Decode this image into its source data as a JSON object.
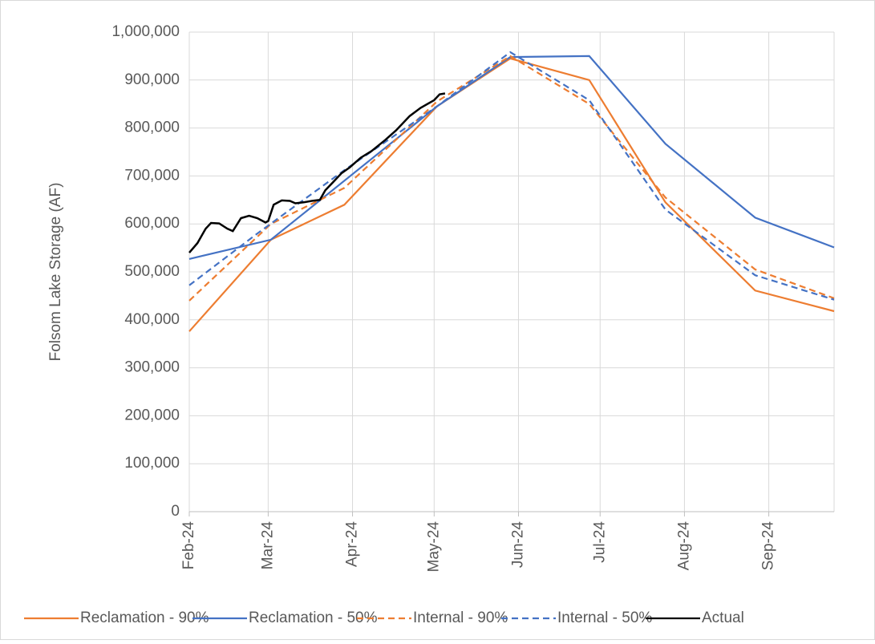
{
  "chart_data": {
    "type": "line",
    "y_label": "Folsom Lake Storage (AF)",
    "xlim": [
      0,
      237
    ],
    "xticks": [
      {
        "value": 0,
        "label": "Feb-24"
      },
      {
        "value": 29,
        "label": "Mar-24"
      },
      {
        "value": 60,
        "label": "Apr-24"
      },
      {
        "value": 90,
        "label": "May-24"
      },
      {
        "value": 121,
        "label": "Jun-24"
      },
      {
        "value": 151,
        "label": "Jul-24"
      },
      {
        "value": 182,
        "label": "Aug-24"
      },
      {
        "value": 213,
        "label": "Sep-24"
      }
    ],
    "ylim": [
      0,
      1000000
    ],
    "yticks": [
      {
        "value": 0,
        "label": "0"
      },
      {
        "value": 100000,
        "label": "100,000"
      },
      {
        "value": 200000,
        "label": "200,000"
      },
      {
        "value": 300000,
        "label": "300,000"
      },
      {
        "value": 400000,
        "label": "400,000"
      },
      {
        "value": 500000,
        "label": "500,000"
      },
      {
        "value": 600000,
        "label": "600,000"
      },
      {
        "value": 700000,
        "label": "700,000"
      },
      {
        "value": 800000,
        "label": "800,000"
      },
      {
        "value": 900000,
        "label": "900,000"
      },
      {
        "value": 1000000,
        "label": "1,000,000"
      }
    ],
    "grid": true,
    "legend": "bottom",
    "series": [
      {
        "name": "Reclamation - 90%",
        "color": "#ed7d31",
        "dash": false,
        "x": [
          0,
          30,
          57,
          91,
          118,
          147,
          175,
          208,
          237
        ],
        "values": [
          376000,
          567000,
          640000,
          845000,
          945000,
          900000,
          645000,
          461000,
          418000
        ]
      },
      {
        "name": "Reclamation - 50%",
        "color": "#4472c4",
        "dash": false,
        "x": [
          0,
          30,
          91,
          118,
          147,
          175,
          208,
          237
        ],
        "values": [
          527000,
          567000,
          845000,
          948000,
          950000,
          767000,
          613000,
          551000
        ]
      },
      {
        "name": "Internal - 90%",
        "color": "#ed7d31",
        "dash": true,
        "x": [
          0,
          30,
          57,
          91,
          118,
          147,
          175,
          208,
          237
        ],
        "values": [
          440000,
          600000,
          675000,
          855000,
          950000,
          850000,
          655000,
          505000,
          445000
        ]
      },
      {
        "name": "Internal - 50%",
        "color": "#4472c4",
        "dash": true,
        "x": [
          0,
          25,
          57,
          91,
          118,
          147,
          175,
          208,
          237
        ],
        "values": [
          472000,
          580000,
          712000,
          845000,
          958000,
          858000,
          630000,
          493000,
          442000
        ]
      },
      {
        "name": "Actual",
        "color": "#000000",
        "dash": false,
        "x": [
          0,
          3,
          6,
          8,
          11,
          14,
          16,
          19,
          22,
          25,
          28,
          29,
          31,
          34,
          37,
          39,
          42,
          45,
          48,
          50,
          53,
          56,
          59,
          63,
          67,
          72,
          76,
          81,
          85,
          90,
          92,
          94
        ],
        "values": [
          540000,
          560000,
          590000,
          602000,
          601000,
          590000,
          585000,
          612000,
          617000,
          612000,
          603000,
          606000,
          640000,
          649000,
          648000,
          643000,
          645000,
          648000,
          650000,
          670000,
          688000,
          706000,
          718000,
          738000,
          752000,
          775000,
          795000,
          825000,
          842000,
          858000,
          870000,
          872000
        ]
      }
    ]
  }
}
